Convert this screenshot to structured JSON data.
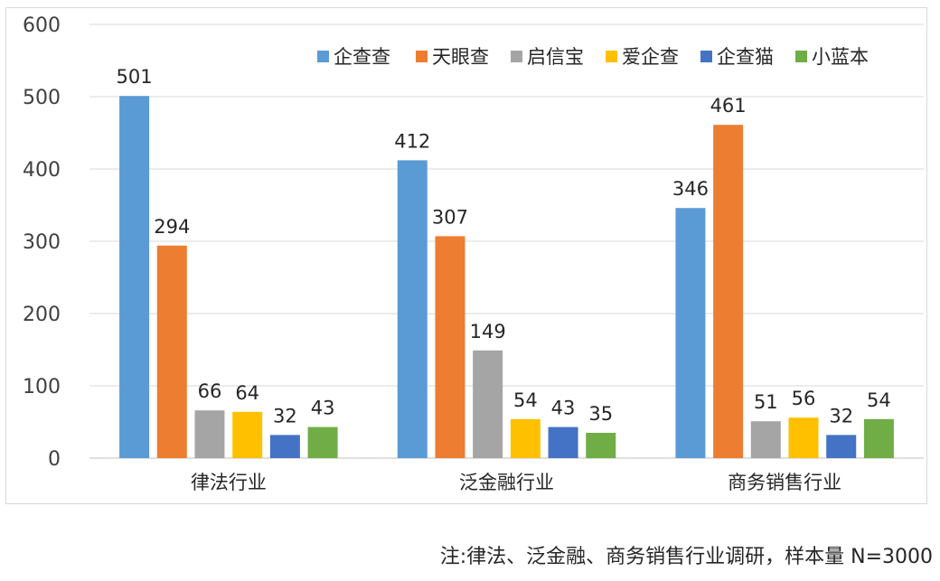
{
  "chart_data": {
    "type": "bar",
    "categories": [
      "律法行业",
      "泛金融行业",
      "商务销售行业"
    ],
    "series": [
      {
        "name": "企查查",
        "color": "#5B9BD5",
        "values": [
          501,
          412,
          346
        ]
      },
      {
        "name": "天眼查",
        "color": "#ED7D31",
        "values": [
          294,
          307,
          461
        ]
      },
      {
        "name": "启信宝",
        "color": "#A5A5A5",
        "values": [
          66,
          149,
          51
        ]
      },
      {
        "name": "爱企查",
        "color": "#FFC000",
        "values": [
          64,
          54,
          56
        ]
      },
      {
        "name": "企查猫",
        "color": "#4472C4",
        "values": [
          32,
          43,
          32
        ]
      },
      {
        "name": "小蓝本",
        "color": "#70AD47",
        "values": [
          43,
          35,
          54
        ]
      }
    ],
    "ylim": [
      0,
      600
    ],
    "yticks": [
      0,
      100,
      200,
      300,
      400,
      500,
      600
    ],
    "grid": true,
    "legend_position": "top-right",
    "data_labels": true
  },
  "footnote": "注:律法、泛金融、商务销售行业调研，样本量 N=3000"
}
